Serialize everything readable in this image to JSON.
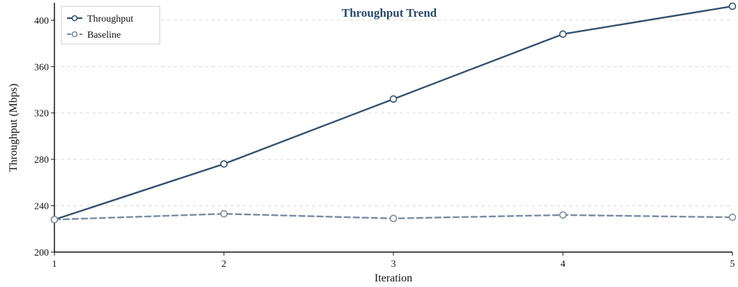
{
  "chart_data": {
    "type": "line",
    "title": "Throughput Trend",
    "xlabel": "Iteration",
    "ylabel": "Throughput (Mbps)",
    "x": [
      1,
      2,
      3,
      4,
      5
    ],
    "x_ticks": [
      "1",
      "2",
      "3",
      "4",
      "5"
    ],
    "xlim": [
      1,
      5
    ],
    "y_ticks": [
      "200",
      "240",
      "280",
      "320",
      "360",
      "400"
    ],
    "y_tick_values": [
      200,
      240,
      280,
      320,
      360,
      400
    ],
    "ylim": [
      200,
      415
    ],
    "grid": "horizontal dashed",
    "legend_position": "top-left",
    "series": [
      {
        "name": "Throughput",
        "values": [
          228,
          276,
          332,
          388,
          412
        ],
        "color": "#34506e",
        "style": "solid",
        "marker": "open-circle"
      },
      {
        "name": "Baseline",
        "values": [
          228,
          233,
          229,
          232,
          230
        ],
        "color": "#7a8aa0",
        "style": "dashed",
        "marker": "open-circle"
      }
    ],
    "colors": {
      "title": "#2a4a6e",
      "grid": "#dcdcdc",
      "axis": "#111111"
    }
  }
}
